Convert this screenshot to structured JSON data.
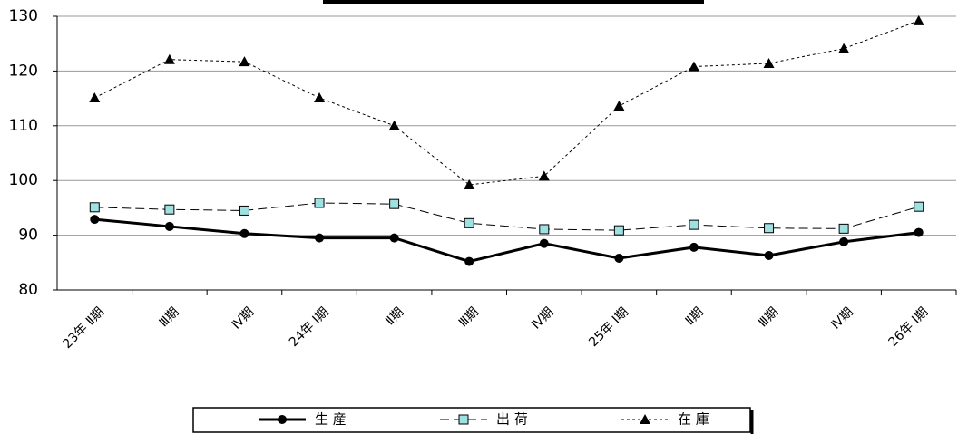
{
  "chart_data": {
    "type": "line",
    "categories": [
      "23年 Ⅱ期",
      "Ⅲ期",
      "Ⅳ期",
      "24年 Ⅰ期",
      "Ⅱ期",
      "Ⅲ期",
      "Ⅳ期",
      "25年 Ⅰ期",
      "Ⅱ期",
      "Ⅲ期",
      "Ⅳ期",
      "26年 Ⅰ期"
    ],
    "series": [
      {
        "name": "生 産",
        "color": "#000000",
        "values": [
          92.9,
          91.6,
          90.3,
          89.5,
          89.5,
          85.2,
          88.5,
          85.8,
          87.8,
          86.3,
          88.8,
          90.5
        ]
      },
      {
        "name": "出 荷",
        "color": "#9fe0e0",
        "values": [
          95.1,
          94.7,
          94.5,
          95.9,
          95.7,
          92.2,
          91.1,
          90.9,
          91.9,
          91.3,
          91.2,
          95.2
        ]
      },
      {
        "name": "在 庫",
        "color": "#000000",
        "values": [
          115.1,
          122.1,
          121.7,
          115.1,
          110.0,
          99.2,
          100.8,
          113.6,
          120.8,
          121.4,
          124.1,
          129.2
        ]
      }
    ],
    "ylim": [
      80,
      130
    ],
    "yticks": [
      80,
      90,
      100,
      110,
      120,
      130
    ],
    "grid": true
  }
}
